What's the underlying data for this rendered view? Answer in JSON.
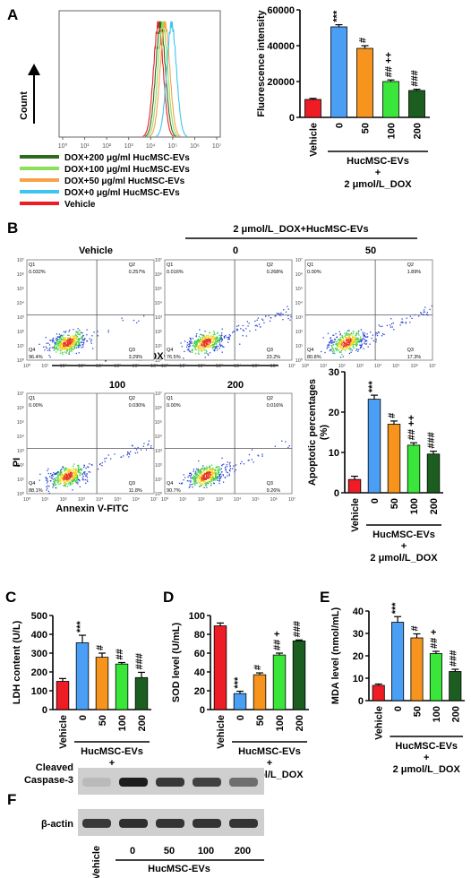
{
  "panels": {
    "A": "A",
    "B": "B",
    "C": "C",
    "D": "D",
    "E": "E",
    "F": "F"
  },
  "colors": {
    "vehicle": "#ee1c24",
    "dose0": "#4a9ff5",
    "dose50": "#f7941d",
    "dose100": "#39e639",
    "dose200": "#1b5e20",
    "dose200_hist": "#2e6b1f",
    "dose100_hist": "#8de05a",
    "dose50_hist": "#f7a24a",
    "dose0_hist": "#3ec6f0",
    "vehicle_hist": "#ee1c24"
  },
  "group_labels": {
    "categories": [
      "Vehicle",
      "0",
      "50",
      "100",
      "200"
    ],
    "group": "HucMSC-EVs",
    "plus": "+",
    "dox": "2 μmol/L_DOX"
  },
  "chart_data": [
    {
      "id": "A-hist",
      "type": "line",
      "ylabel": "Count",
      "xlabel": "",
      "x_ticks": [
        "10⁰",
        "10¹",
        "10²",
        "10³",
        "10⁴",
        "10⁵",
        "10⁶",
        "10⁷"
      ],
      "legend": [
        {
          "name": "DOX+200 μg/ml HucMSC-EVs",
          "colorKey": "dose200_hist"
        },
        {
          "name": "DOX+100 μg/ml HucMSC-EVs",
          "colorKey": "dose100_hist"
        },
        {
          "name": "DOX+50 μg/ml HucMSC-EVs",
          "colorKey": "dose50_hist"
        },
        {
          "name": "DOX+0 μg/ml HucMSC-EVs",
          "colorKey": "dose0_hist"
        },
        {
          "name": "Vehicle",
          "colorKey": "vehicle_hist"
        }
      ],
      "peaks_log10": {
        "vehicle_hist": 4.35,
        "dose200_hist": 4.45,
        "dose100_hist": 4.55,
        "dose50_hist": 4.65,
        "dose0_hist": 4.95
      }
    },
    {
      "id": "A-bar",
      "type": "bar",
      "ylabel": "Fluorescence intensity",
      "ylim": [
        0,
        60000
      ],
      "yticks": [
        "0",
        "20000",
        "40000",
        "60000"
      ],
      "values": [
        10000,
        50500,
        38500,
        20000,
        15000
      ],
      "errors": [
        600,
        1200,
        1500,
        900,
        700
      ],
      "annotations": [
        "",
        "***",
        "#",
        "## ++",
        "###"
      ]
    },
    {
      "id": "B-quadrants",
      "type": "scatter",
      "header": "2 μmol/L_DOX+HucMSC-EVs",
      "xlabel": "Annexin V-FITC",
      "ylabel": "PI",
      "axis_ticks": [
        "10⁰",
        "10¹",
        "10²",
        "10³",
        "10⁴",
        "10⁵",
        "10⁶",
        "10⁷"
      ],
      "plots": [
        {
          "title": "Vehicle",
          "Q1": "0.032%",
          "Q2": "0.257%",
          "Q3": "3.29%",
          "Q4": "96.4%"
        },
        {
          "title": "0",
          "Q1": "0.016%",
          "Q2": "0.268%",
          "Q3": "23.2%",
          "Q4": "76.5%"
        },
        {
          "title": "50",
          "Q1": "0.00%",
          "Q2": "1.89%",
          "Q3": "17.3%",
          "Q4": "80.8%"
        },
        {
          "title": "100",
          "Q1": "0.00%",
          "Q2": "0.030%",
          "Q3": "11.8%",
          "Q4": "88.1%"
        },
        {
          "title": "200",
          "Q1": "0.00%",
          "Q2": "0.016%",
          "Q3": "9.26%",
          "Q4": "90.7%"
        }
      ]
    },
    {
      "id": "B-bar",
      "type": "bar",
      "ylabel": "Apoptotic percentages (%)",
      "ylim": [
        0,
        30
      ],
      "yticks": [
        "0",
        "10",
        "20",
        "30"
      ],
      "values": [
        3.3,
        23.2,
        17,
        11.8,
        9.6
      ],
      "errors": [
        0.8,
        1.0,
        0.8,
        0.6,
        0.7
      ],
      "annotations": [
        "",
        "***",
        "#",
        "## ++",
        "###"
      ]
    },
    {
      "id": "C",
      "type": "bar",
      "ylabel": "LDH content (U/L)",
      "ylim": [
        0,
        500
      ],
      "yticks": [
        "0",
        "100",
        "200",
        "300",
        "400",
        "500"
      ],
      "values": [
        150,
        355,
        278,
        242,
        170
      ],
      "errors": [
        15,
        40,
        22,
        8,
        28
      ],
      "annotations": [
        "",
        "***",
        "#",
        "##",
        "###"
      ]
    },
    {
      "id": "D",
      "type": "bar",
      "ylabel": "SOD level (U/mL)",
      "ylim": [
        0,
        100
      ],
      "yticks": [
        "0",
        "20",
        "40",
        "60",
        "80",
        "100"
      ],
      "values": [
        89,
        17,
        37,
        58,
        73
      ],
      "errors": [
        3,
        2.5,
        2,
        2,
        1
      ],
      "annotations": [
        "",
        "***",
        "#",
        "## +",
        "###"
      ]
    },
    {
      "id": "E",
      "type": "bar",
      "ylabel": "MDA level (nmol/mL)",
      "ylim": [
        0,
        40
      ],
      "yticks": [
        "0",
        "10",
        "20",
        "30",
        "40"
      ],
      "values": [
        6.8,
        35,
        28,
        21,
        13
      ],
      "errors": [
        0.6,
        2.5,
        1.8,
        1.0,
        1.0
      ],
      "annotations": [
        "",
        "***",
        "#",
        "## +",
        "###"
      ]
    }
  ],
  "blot": {
    "rows": [
      {
        "label": "Cleaved Caspase-3",
        "intensities": [
          0.08,
          0.95,
          0.8,
          0.75,
          0.5
        ]
      },
      {
        "label": "β-actin",
        "intensities": [
          0.8,
          0.85,
          0.82,
          0.83,
          0.82
        ]
      }
    ]
  }
}
